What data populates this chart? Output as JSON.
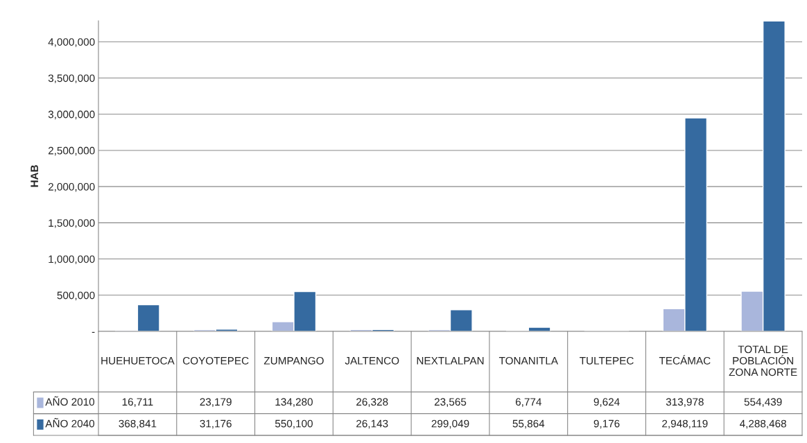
{
  "chart_data": {
    "type": "bar",
    "ylabel": "HAB",
    "categories": [
      "HUEHUETOCA",
      "COYOTEPEC",
      "ZUMPANGO",
      "JALTENCO",
      "NEXTLALPAN",
      "TONANITLA",
      "TULTEPEC",
      "TECÁMAC",
      "TOTAL DE\nPOBLACIÓN\nZONA NORTE"
    ],
    "series": [
      {
        "name": "AÑO 2010",
        "color": "#a9b6dc",
        "values": [
          16711,
          23179,
          134280,
          26328,
          23565,
          6774,
          9624,
          313978,
          554439
        ],
        "value_labels": [
          "16,711",
          "23,179",
          "134,280",
          "26,328",
          "23,565",
          "6,774",
          "9,624",
          "313,978",
          "554,439"
        ]
      },
      {
        "name": "AÑO 2040",
        "color": "#356aa0",
        "values": [
          368841,
          31176,
          550100,
          26143,
          299049,
          55864,
          9176,
          2948119,
          4288468
        ],
        "value_labels": [
          "368,841",
          "31,176",
          "550,100",
          "26,143",
          "299,049",
          "55,864",
          "9,176",
          "2,948,119",
          "4,288,468"
        ]
      }
    ],
    "ylim": [
      0,
      4290000
    ],
    "yticks": [
      {
        "value": 0,
        "label": "-"
      },
      {
        "value": 500000,
        "label": "500,000"
      },
      {
        "value": 1000000,
        "label": "1,000,000"
      },
      {
        "value": 1500000,
        "label": "1,500,000"
      },
      {
        "value": 2000000,
        "label": "2,000,000"
      },
      {
        "value": 2500000,
        "label": "2,500,000"
      },
      {
        "value": 3000000,
        "label": "3,000,000"
      },
      {
        "value": 3500000,
        "label": "3,500,000"
      },
      {
        "value": 4000000,
        "label": "4,000,000"
      }
    ],
    "grid": "y",
    "legend": "bottom left"
  }
}
